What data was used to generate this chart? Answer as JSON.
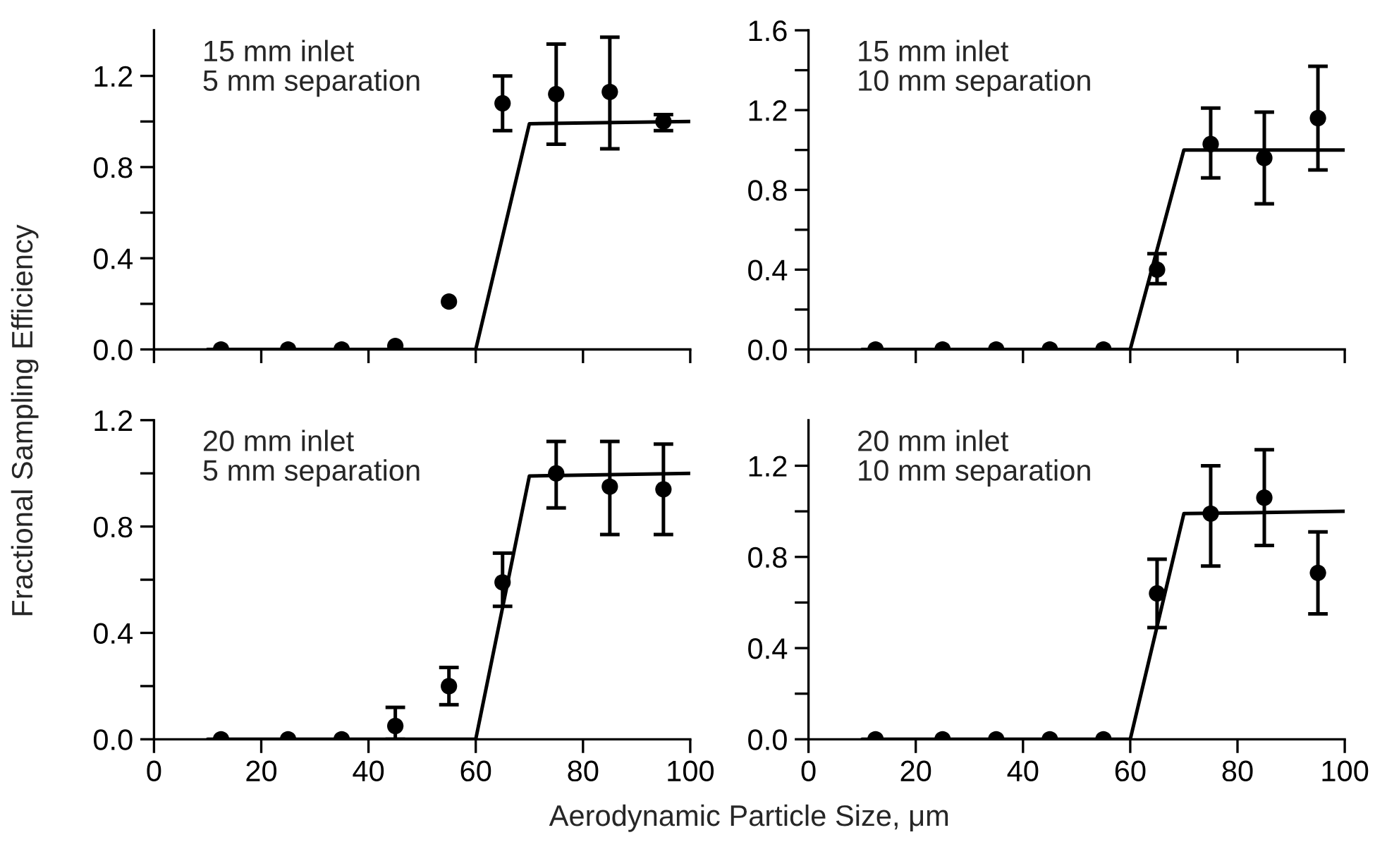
{
  "chart_data": [
    {
      "type": "scatter",
      "ylabel": "Fractional Sampling Efficiency",
      "annotations": [
        "15 mm inlet\n5 mm separation"
      ],
      "xlim": [
        0,
        100
      ],
      "xticks": [
        {
          "value": 0,
          "label": null
        },
        {
          "value": 20,
          "label": null
        },
        {
          "value": 40,
          "label": null
        },
        {
          "value": 60,
          "label": null
        },
        {
          "value": 80,
          "label": null
        },
        {
          "value": 100,
          "label": null
        }
      ],
      "ylim": [
        0,
        1.4
      ],
      "yticks": [
        {
          "value": 0,
          "label": "0.0"
        },
        {
          "value": 0.2,
          "label": null
        },
        {
          "value": 0.4,
          "label": "0.4"
        },
        {
          "value": 0.6,
          "label": null
        },
        {
          "value": 0.8,
          "label": "0.8"
        },
        {
          "value": 1.0,
          "label": null
        },
        {
          "value": 1.2,
          "label": "1.2"
        }
      ],
      "tick_labels": "y",
      "grid": false,
      "marker": "circle",
      "series": [
        {
          "color": "#000000",
          "x": [
            12.5,
            25,
            35,
            45,
            55,
            65,
            75,
            85,
            95
          ],
          "values": [
            0,
            0,
            0,
            0.015,
            0.21,
            1.08,
            1.12,
            1.13,
            1.0
          ],
          "errors": [
            null,
            null,
            null,
            null,
            null,
            [
              0.96,
              1.2
            ],
            [
              0.9,
              1.34
            ],
            [
              0.88,
              1.37
            ],
            [
              0.96,
              1.03
            ]
          ]
        },
        {
          "type": "line",
          "color": "#000000",
          "marker": "none",
          "line_style": "solid",
          "x": [
            10,
            60,
            70,
            100
          ],
          "values": [
            0,
            0,
            0.99,
            1.0
          ]
        }
      ]
    },
    {
      "type": "scatter",
      "annotations": [
        "15 mm inlet\n10 mm separation"
      ],
      "xlim": [
        0,
        100
      ],
      "xticks": [
        {
          "value": 0,
          "label": null
        },
        {
          "value": 20,
          "label": null
        },
        {
          "value": 40,
          "label": null
        },
        {
          "value": 60,
          "label": null
        },
        {
          "value": 80,
          "label": null
        },
        {
          "value": 100,
          "label": null
        }
      ],
      "ylim": [
        0,
        1.6
      ],
      "yticks": [
        {
          "value": 0,
          "label": "0.0"
        },
        {
          "value": 0.2,
          "label": null
        },
        {
          "value": 0.4,
          "label": "0.4"
        },
        {
          "value": 0.6,
          "label": null
        },
        {
          "value": 0.8,
          "label": "0.8"
        },
        {
          "value": 1.0,
          "label": null
        },
        {
          "value": 1.2,
          "label": "1.2"
        },
        {
          "value": 1.4,
          "label": null
        },
        {
          "value": 1.6,
          "label": "1.6"
        }
      ],
      "tick_labels": "y",
      "grid": false,
      "marker": "circle",
      "series": [
        {
          "color": "#000000",
          "x": [
            12.5,
            25,
            35,
            45,
            55,
            65,
            75,
            85,
            95
          ],
          "values": [
            0,
            0,
            0,
            0,
            0,
            0.4,
            1.03,
            0.96,
            1.16
          ],
          "errors": [
            null,
            null,
            null,
            null,
            null,
            [
              0.33,
              0.48
            ],
            [
              0.86,
              1.21
            ],
            [
              0.73,
              1.19
            ],
            [
              0.9,
              1.42
            ]
          ]
        },
        {
          "type": "line",
          "color": "#000000",
          "marker": "none",
          "line_style": "solid",
          "x": [
            10,
            60,
            70,
            100
          ],
          "values": [
            0,
            0,
            1.0,
            1.0
          ]
        }
      ]
    },
    {
      "type": "scatter",
      "xlabel": "Aerodynamic Particle Size, μm",
      "annotations": [
        "20 mm inlet\n5 mm separation"
      ],
      "xlim": [
        0,
        100
      ],
      "xticks": [
        0,
        20,
        40,
        60,
        80,
        100
      ],
      "ylim": [
        0,
        1.2
      ],
      "yticks": [
        {
          "value": 0,
          "label": "0.0"
        },
        {
          "value": 0.2,
          "label": null
        },
        {
          "value": 0.4,
          "label": "0.4"
        },
        {
          "value": 0.6,
          "label": null
        },
        {
          "value": 0.8,
          "label": "0.8"
        },
        {
          "value": 1.0,
          "label": null
        },
        {
          "value": 1.2,
          "label": "1.2"
        }
      ],
      "grid": false,
      "marker": "circle",
      "series": [
        {
          "color": "#000000",
          "x": [
            12.5,
            25,
            35,
            45,
            55,
            65,
            75,
            85,
            95
          ],
          "values": [
            0,
            0,
            0,
            0.05,
            0.2,
            0.59,
            1.0,
            0.95,
            0.94
          ],
          "errors": [
            null,
            null,
            null,
            [
              0.0,
              0.12
            ],
            [
              0.13,
              0.27
            ],
            [
              0.5,
              0.7
            ],
            [
              0.87,
              1.12
            ],
            [
              0.77,
              1.12
            ],
            [
              0.77,
              1.11
            ]
          ]
        },
        {
          "type": "line",
          "color": "#000000",
          "marker": "none",
          "line_style": "solid",
          "x": [
            10,
            60,
            70,
            100
          ],
          "values": [
            0,
            0,
            0.99,
            1.0
          ]
        }
      ]
    },
    {
      "type": "scatter",
      "annotations": [
        "20 mm inlet\n10 mm separation"
      ],
      "xlim": [
        0,
        100
      ],
      "xticks": [
        0,
        20,
        40,
        60,
        80,
        100
      ],
      "ylim": [
        0,
        1.4
      ],
      "yticks": [
        {
          "value": 0,
          "label": "0.0"
        },
        {
          "value": 0.2,
          "label": null
        },
        {
          "value": 0.4,
          "label": "0.4"
        },
        {
          "value": 0.6,
          "label": null
        },
        {
          "value": 0.8,
          "label": "0.8"
        },
        {
          "value": 1.0,
          "label": null
        },
        {
          "value": 1.2,
          "label": "1.2"
        }
      ],
      "grid": false,
      "marker": "circle",
      "series": [
        {
          "color": "#000000",
          "x": [
            12.5,
            25,
            35,
            45,
            55,
            65,
            75,
            85,
            95
          ],
          "values": [
            0,
            0,
            0,
            0,
            0,
            0.64,
            0.99,
            1.06,
            0.73
          ],
          "errors": [
            null,
            null,
            null,
            null,
            null,
            [
              0.49,
              0.79
            ],
            [
              0.76,
              1.2
            ],
            [
              0.85,
              1.27
            ],
            [
              0.55,
              0.91
            ]
          ]
        },
        {
          "type": "line",
          "color": "#000000",
          "marker": "none",
          "line_style": "solid",
          "x": [
            10,
            60,
            70,
            100
          ],
          "values": [
            0,
            0,
            0.99,
            1.0
          ]
        }
      ]
    }
  ]
}
